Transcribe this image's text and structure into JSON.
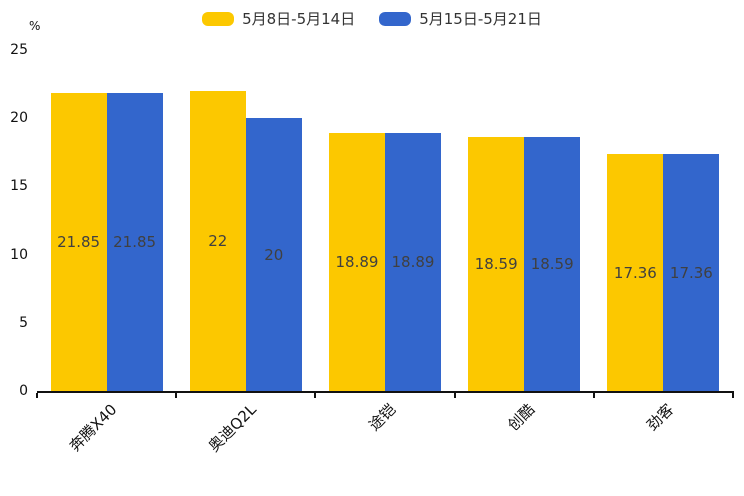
{
  "chart_data": {
    "type": "bar",
    "title": "",
    "categories": [
      "奔腾X40",
      "奥迪Q2L",
      "途铠",
      "创酷",
      "劲客"
    ],
    "series": [
      {
        "name": "5月8日-5月14日",
        "color": "#fcc800",
        "values": [
          21.85,
          22,
          18.89,
          18.59,
          17.36
        ]
      },
      {
        "name": "5月15日-5月21日",
        "color": "#3366cc",
        "values": [
          21.85,
          20,
          18.89,
          18.59,
          17.36
        ]
      }
    ],
    "xlabel": "",
    "ylabel": "%",
    "ylim": [
      0,
      25
    ],
    "yticks": [
      0,
      5,
      10,
      15,
      20,
      25
    ],
    "grid": false,
    "legend_position": "top-center",
    "value_labels": "inside-middle",
    "x_tick_label_rotation": 45,
    "axis_color": "#111111",
    "text_color": "#111111",
    "value_label_color": "#404040",
    "legend_text_color": "#333333"
  }
}
